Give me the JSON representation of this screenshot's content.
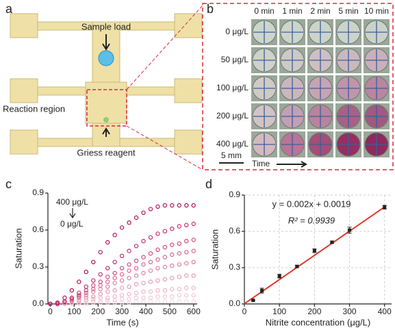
{
  "figure": {
    "a": {
      "label": "a",
      "sample_load": "Sample load",
      "reaction_region": "Reaction region",
      "griess_reagent": "Griess reagent"
    },
    "b": {
      "label": "b",
      "columns": [
        "0 min",
        "1 min",
        "2 min",
        "5 min",
        "10 min"
      ],
      "rows": [
        "0 μg/L",
        "50 μg/L",
        "100 μg/L",
        "200 μg/L",
        "400 μg/L"
      ],
      "scale_bar": "5 mm",
      "time_axis": "Time"
    }
  },
  "chart_data": [
    {
      "type": "scatter",
      "panel_label": "c",
      "x_label": "Time (s)",
      "y_label": "Saturation",
      "annotations": [
        "400 μg/L",
        "0 μg/L"
      ],
      "x": [
        0,
        30,
        60,
        90,
        120,
        150,
        180,
        210,
        240,
        270,
        300,
        330,
        360,
        390,
        420,
        450,
        480,
        510,
        540,
        570,
        600
      ],
      "series": [
        {
          "color": "#b0125a",
          "values": [
            0,
            0.01,
            0.05,
            0.11,
            0.18,
            0.26,
            0.34,
            0.42,
            0.5,
            0.56,
            0.62,
            0.66,
            0.7,
            0.74,
            0.77,
            0.79,
            0.8,
            0.8,
            0.8,
            0.8,
            0.8
          ]
        },
        {
          "color": "#c42e6e",
          "values": [
            0,
            0,
            0.02,
            0.05,
            0.09,
            0.14,
            0.19,
            0.24,
            0.29,
            0.34,
            0.39,
            0.43,
            0.47,
            0.51,
            0.54,
            0.57,
            0.59,
            0.61,
            0.63,
            0.64,
            0.65
          ]
        },
        {
          "color": "#d04a80",
          "values": [
            0,
            0,
            0.02,
            0.04,
            0.07,
            0.11,
            0.15,
            0.18,
            0.22,
            0.25,
            0.29,
            0.32,
            0.35,
            0.38,
            0.41,
            0.44,
            0.46,
            0.48,
            0.49,
            0.51,
            0.52
          ]
        },
        {
          "color": "#d96690",
          "values": [
            0,
            0,
            0.01,
            0.03,
            0.06,
            0.09,
            0.12,
            0.15,
            0.18,
            0.21,
            0.24,
            0.27,
            0.29,
            0.32,
            0.34,
            0.36,
            0.38,
            0.4,
            0.41,
            0.42,
            0.43
          ]
        },
        {
          "color": "#e07fa2",
          "values": [
            0,
            0,
            0.01,
            0.03,
            0.05,
            0.07,
            0.1,
            0.12,
            0.14,
            0.17,
            0.19,
            0.21,
            0.23,
            0.25,
            0.27,
            0.29,
            0.3,
            0.31,
            0.32,
            0.33,
            0.34
          ]
        },
        {
          "color": "#e89ab5",
          "values": [
            0,
            0,
            0.01,
            0.02,
            0.03,
            0.05,
            0.06,
            0.08,
            0.1,
            0.11,
            0.13,
            0.14,
            0.16,
            0.17,
            0.18,
            0.19,
            0.2,
            0.21,
            0.22,
            0.23,
            0.23
          ]
        },
        {
          "color": "#efb4c8",
          "values": [
            0,
            0,
            0,
            0.01,
            0.02,
            0.03,
            0.04,
            0.05,
            0.05,
            0.06,
            0.07,
            0.08,
            0.09,
            0.1,
            0.1,
            0.11,
            0.11,
            0.12,
            0.12,
            0.13,
            0.13
          ]
        },
        {
          "color": "#f3c7d6",
          "values": [
            0,
            0,
            0,
            0.01,
            0.01,
            0.01,
            0.02,
            0.02,
            0.03,
            0.03,
            0.04,
            0.04,
            0.05,
            0.05,
            0.05,
            0.06,
            0.06,
            0.06,
            0.07,
            0.07,
            0.07
          ]
        },
        {
          "color": "#f6d8e2",
          "values": [
            0,
            0,
            0,
            0,
            0,
            0,
            0.01,
            0.01,
            0.01,
            0.01,
            0.01,
            0.01,
            0.02,
            0.02,
            0.02,
            0.02,
            0.02,
            0.02,
            0.02,
            0.02,
            0.02
          ]
        }
      ],
      "xlim": [
        -10,
        615
      ],
      "xticks": [
        0,
        100,
        200,
        300,
        400,
        500,
        600
      ],
      "ylim": [
        0,
        0.9
      ],
      "yticks": [
        {
          "value": 0,
          "label": "0.0"
        },
        0.3,
        0.6,
        0.9
      ],
      "grid": false
    },
    {
      "type": "scatter",
      "panel_label": "d",
      "x_label": "Nitrite concentration (μg/L)",
      "y_label": "Saturation",
      "equation": "y = 0.002x + 0.0019",
      "r_squared": "R² = 0.9939",
      "x": [
        25,
        50,
        100,
        150,
        200,
        250,
        300,
        400
      ],
      "values": [
        0.03,
        0.11,
        0.23,
        0.31,
        0.44,
        0.51,
        0.61,
        0.8
      ],
      "errors": [
        0.005,
        0.02,
        0.015,
        0.01,
        0.015,
        0.01,
        0.025,
        0.015
      ],
      "color": "#222222",
      "fit": {
        "color": "#e0392b",
        "x": [
          0,
          400
        ],
        "values": [
          0.0019,
          0.8019
        ]
      },
      "xlim": [
        0,
        420
      ],
      "xticks": [
        0,
        100,
        200,
        300,
        400
      ],
      "ylim": [
        0,
        0.9
      ],
      "yticks": [
        {
          "value": 0,
          "label": "0.0"
        },
        0.3,
        0.6,
        0.9
      ],
      "grid": true
    }
  ]
}
